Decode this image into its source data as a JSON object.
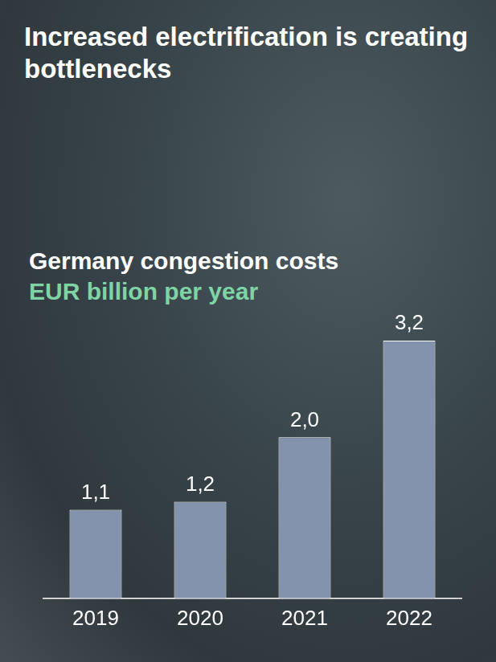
{
  "chart_data": {
    "type": "bar",
    "title": "Increased electrification is creating bottlenecks",
    "subtitle": "Germany congestion costs",
    "y_label": "EUR billion per year",
    "categories": [
      "2019",
      "2020",
      "2021",
      "2022"
    ],
    "values": [
      1.1,
      1.2,
      2.0,
      3.2
    ],
    "value_labels": [
      "1,1",
      "1,2",
      "2,0",
      "3,2"
    ],
    "color": "#8393ae",
    "data_labels": true,
    "grid": false,
    "tick_labels": "x"
  }
}
